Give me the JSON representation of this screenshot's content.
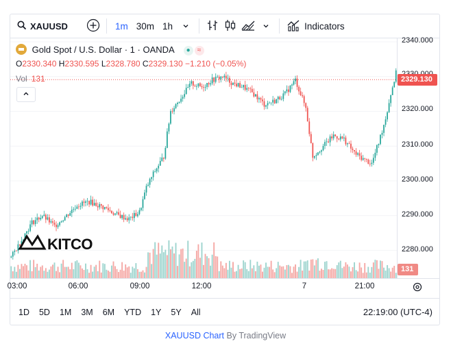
{
  "toolbar": {
    "symbol": "XAUUSD",
    "timeframes": [
      "1m",
      "30m",
      "1h"
    ],
    "active_timeframe": "1m",
    "indicators_label": "Indicators"
  },
  "legend": {
    "title": "Gold Spot / U.S. Dollar · 1 · OANDA",
    "ohlc": {
      "o_label": "O",
      "o": "2330.340",
      "h_label": "H",
      "h": "2330.595",
      "l_label": "L",
      "l": "2328.780",
      "c_label": "C",
      "c": "2329.130",
      "change": "−1.210 (−0.05%)"
    },
    "vol_label": "Vol",
    "vol_value": "131"
  },
  "price_axis": {
    "ticks": [
      "2340.000",
      "2330.000",
      "2320.000",
      "2310.000",
      "2300.000",
      "2290.000",
      "2280.000"
    ],
    "last_price": "2329.130",
    "last_volume": "131"
  },
  "time_axis": {
    "ticks": [
      "03:00",
      "06:00",
      "09:00",
      "12:00",
      "7",
      "21:00"
    ]
  },
  "ranges": [
    "1D",
    "5D",
    "1M",
    "3M",
    "6M",
    "YTD",
    "1Y",
    "5Y",
    "All"
  ],
  "clock": "22:19:00 (UTC-4)",
  "watermark": "KITCO",
  "credit": {
    "symbol_text": "XAUUSD Chart",
    "by_text": "By TradingView"
  },
  "colors": {
    "up": "#26a69a",
    "down": "#ef5350",
    "accent": "#2962ff"
  },
  "chart_data": {
    "type": "candlestick",
    "y_range": [
      2272,
      2341
    ],
    "x_ticks": [
      "03:00",
      "06:00",
      "09:00",
      "12:00",
      "7",
      "21:00"
    ],
    "anchors": [
      [
        0,
        2278
      ],
      [
        12,
        2288
      ],
      [
        18,
        2290
      ],
      [
        25,
        2287
      ],
      [
        32,
        2290
      ],
      [
        38,
        2293
      ],
      [
        45,
        2294
      ],
      [
        55,
        2292
      ],
      [
        58,
        2291
      ],
      [
        62,
        2290
      ],
      [
        68,
        2289
      ],
      [
        74,
        2291
      ],
      [
        78,
        2298
      ],
      [
        82,
        2302
      ],
      [
        88,
        2307
      ],
      [
        92,
        2320
      ],
      [
        98,
        2324
      ],
      [
        104,
        2328
      ],
      [
        110,
        2327
      ],
      [
        116,
        2329
      ],
      [
        122,
        2330
      ],
      [
        128,
        2328
      ],
      [
        134,
        2327
      ],
      [
        140,
        2325
      ],
      [
        146,
        2322
      ],
      [
        152,
        2323
      ],
      [
        158,
        2325
      ],
      [
        164,
        2329
      ],
      [
        170,
        2321
      ],
      [
        174,
        2307
      ],
      [
        180,
        2310
      ],
      [
        186,
        2313
      ],
      [
        192,
        2312
      ],
      [
        198,
        2308
      ],
      [
        204,
        2306
      ],
      [
        208,
        2305
      ],
      [
        212,
        2311
      ],
      [
        216,
        2318
      ],
      [
        219,
        2325
      ],
      [
        222,
        2331
      ]
    ],
    "last_price": 2329.13
  }
}
